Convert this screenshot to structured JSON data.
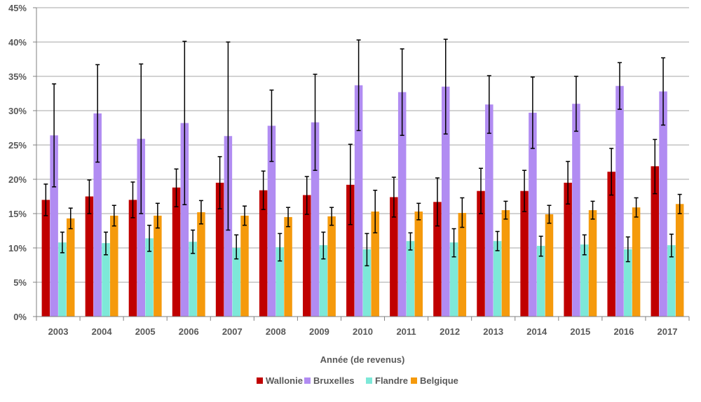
{
  "chart_data": {
    "type": "bar",
    "title": "",
    "xlabel": "Année (de revenus)",
    "ylabel": "",
    "ylim": [
      0,
      45
    ],
    "y_ticks": [
      0,
      5,
      10,
      15,
      20,
      25,
      30,
      35,
      40,
      45
    ],
    "y_tick_suffix": "%",
    "grid": "horizontal",
    "legend_position": "bottom",
    "error_bars": true,
    "categories": [
      "2003",
      "2004",
      "2005",
      "2006",
      "2007",
      "2008",
      "2009",
      "2010",
      "2011",
      "2012",
      "2013",
      "2014",
      "2015",
      "2016",
      "2017"
    ],
    "series": [
      {
        "name": "Wallonie",
        "color": "#c00000",
        "values": [
          17.0,
          17.5,
          17.0,
          18.8,
          19.5,
          18.4,
          17.7,
          19.2,
          17.4,
          16.7,
          18.3,
          18.3,
          19.5,
          21.1,
          21.9
        ],
        "err_low": [
          14.7,
          15.0,
          14.4,
          16.0,
          15.7,
          15.6,
          14.9,
          13.4,
          14.5,
          13.2,
          15.0,
          15.3,
          16.4,
          17.7,
          17.9
        ],
        "err_high": [
          19.3,
          19.9,
          19.6,
          21.5,
          23.3,
          21.2,
          20.4,
          25.1,
          20.3,
          20.2,
          21.6,
          21.3,
          22.6,
          24.5,
          25.8
        ]
      },
      {
        "name": "Bruxelles",
        "color": "#b18cf2",
        "values": [
          26.4,
          29.6,
          25.9,
          28.2,
          26.3,
          27.8,
          28.3,
          33.7,
          32.7,
          33.5,
          30.9,
          29.7,
          31.0,
          33.6,
          32.8
        ],
        "err_low": [
          18.9,
          22.5,
          15.0,
          16.3,
          12.6,
          22.6,
          21.3,
          27.1,
          26.4,
          26.6,
          26.7,
          24.5,
          27.0,
          30.2,
          27.9
        ],
        "err_high": [
          33.9,
          36.7,
          36.8,
          40.1,
          40.0,
          33.0,
          35.3,
          40.3,
          39.0,
          40.4,
          35.1,
          34.9,
          35.0,
          37.0,
          37.7
        ]
      },
      {
        "name": "Flandre",
        "color": "#7de8d8",
        "values": [
          10.8,
          10.7,
          11.4,
          10.9,
          10.0,
          10.1,
          10.4,
          9.8,
          11.0,
          10.8,
          11.0,
          10.3,
          10.5,
          9.8,
          10.4
        ],
        "err_low": [
          9.3,
          9.0,
          9.5,
          9.2,
          8.4,
          8.1,
          8.4,
          7.4,
          9.7,
          8.7,
          9.6,
          8.8,
          9.0,
          8.0,
          8.7
        ],
        "err_high": [
          12.3,
          12.3,
          13.3,
          12.6,
          11.9,
          12.1,
          12.3,
          12.1,
          12.2,
          12.8,
          12.4,
          11.7,
          11.9,
          11.6,
          12.0
        ]
      },
      {
        "name": "Belgique",
        "color": "#f59a0c",
        "values": [
          14.3,
          14.7,
          14.7,
          15.2,
          14.7,
          14.5,
          14.6,
          15.3,
          15.3,
          15.1,
          15.5,
          14.9,
          15.5,
          15.9,
          16.4
        ],
        "err_low": [
          12.8,
          13.2,
          12.9,
          13.5,
          13.3,
          13.1,
          13.3,
          12.2,
          14.1,
          13.0,
          14.2,
          13.6,
          14.2,
          14.5,
          15.0
        ],
        "err_high": [
          15.8,
          16.2,
          16.5,
          16.9,
          16.1,
          15.9,
          15.9,
          18.4,
          16.5,
          17.3,
          16.8,
          16.2,
          16.8,
          17.3,
          17.8
        ]
      }
    ]
  }
}
